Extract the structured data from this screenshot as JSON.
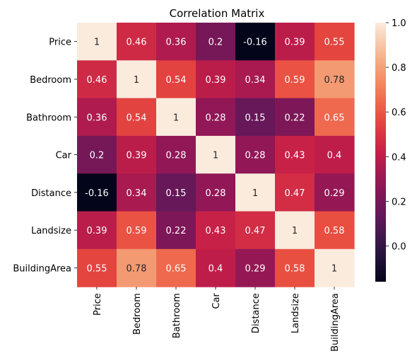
{
  "chart_data": {
    "type": "heatmap",
    "title": "Correlation Matrix",
    "xlabel": "",
    "ylabel": "",
    "variables": [
      "Price",
      "Bedroom",
      "Bathroom",
      "Car",
      "Distance",
      "Landsize",
      "BuildingArea"
    ],
    "values": [
      [
        1,
        0.46,
        0.36,
        0.2,
        -0.16,
        0.39,
        0.55
      ],
      [
        0.46,
        1,
        0.54,
        0.39,
        0.34,
        0.59,
        0.78
      ],
      [
        0.36,
        0.54,
        1,
        0.28,
        0.15,
        0.22,
        0.65
      ],
      [
        0.2,
        0.39,
        0.28,
        1,
        0.28,
        0.43,
        0.4
      ],
      [
        -0.16,
        0.34,
        0.15,
        0.28,
        1,
        0.47,
        0.29
      ],
      [
        0.39,
        0.59,
        0.22,
        0.43,
        0.47,
        1,
        0.58
      ],
      [
        0.55,
        0.78,
        0.65,
        0.4,
        0.29,
        0.58,
        1
      ]
    ],
    "labels": [
      [
        "1",
        "0.46",
        "0.36",
        "0.2",
        "-0.16",
        "0.39",
        "0.55"
      ],
      [
        "0.46",
        "1",
        "0.54",
        "0.39",
        "0.34",
        "0.59",
        "0.78"
      ],
      [
        "0.36",
        "0.54",
        "1",
        "0.28",
        "0.15",
        "0.22",
        "0.65"
      ],
      [
        "0.2",
        "0.39",
        "0.28",
        "1",
        "0.28",
        "0.43",
        "0.4"
      ],
      [
        "-0.16",
        "0.34",
        "0.15",
        "0.28",
        "1",
        "0.47",
        "0.29"
      ],
      [
        "0.39",
        "0.59",
        "0.22",
        "0.43",
        "0.47",
        "1",
        "0.58"
      ],
      [
        "0.55",
        "0.78",
        "0.65",
        "0.4",
        "0.29",
        "0.58",
        "1"
      ]
    ],
    "colormap": "rocket",
    "vmin": -0.16,
    "vmax": 1,
    "colorbar": {
      "ticks": [
        0.0,
        0.2,
        0.4,
        0.6,
        0.8,
        1.0
      ],
      "tick_labels": [
        "0.0",
        "0.2",
        "0.4",
        "0.6",
        "0.8",
        "1.0"
      ]
    },
    "grid": false
  }
}
